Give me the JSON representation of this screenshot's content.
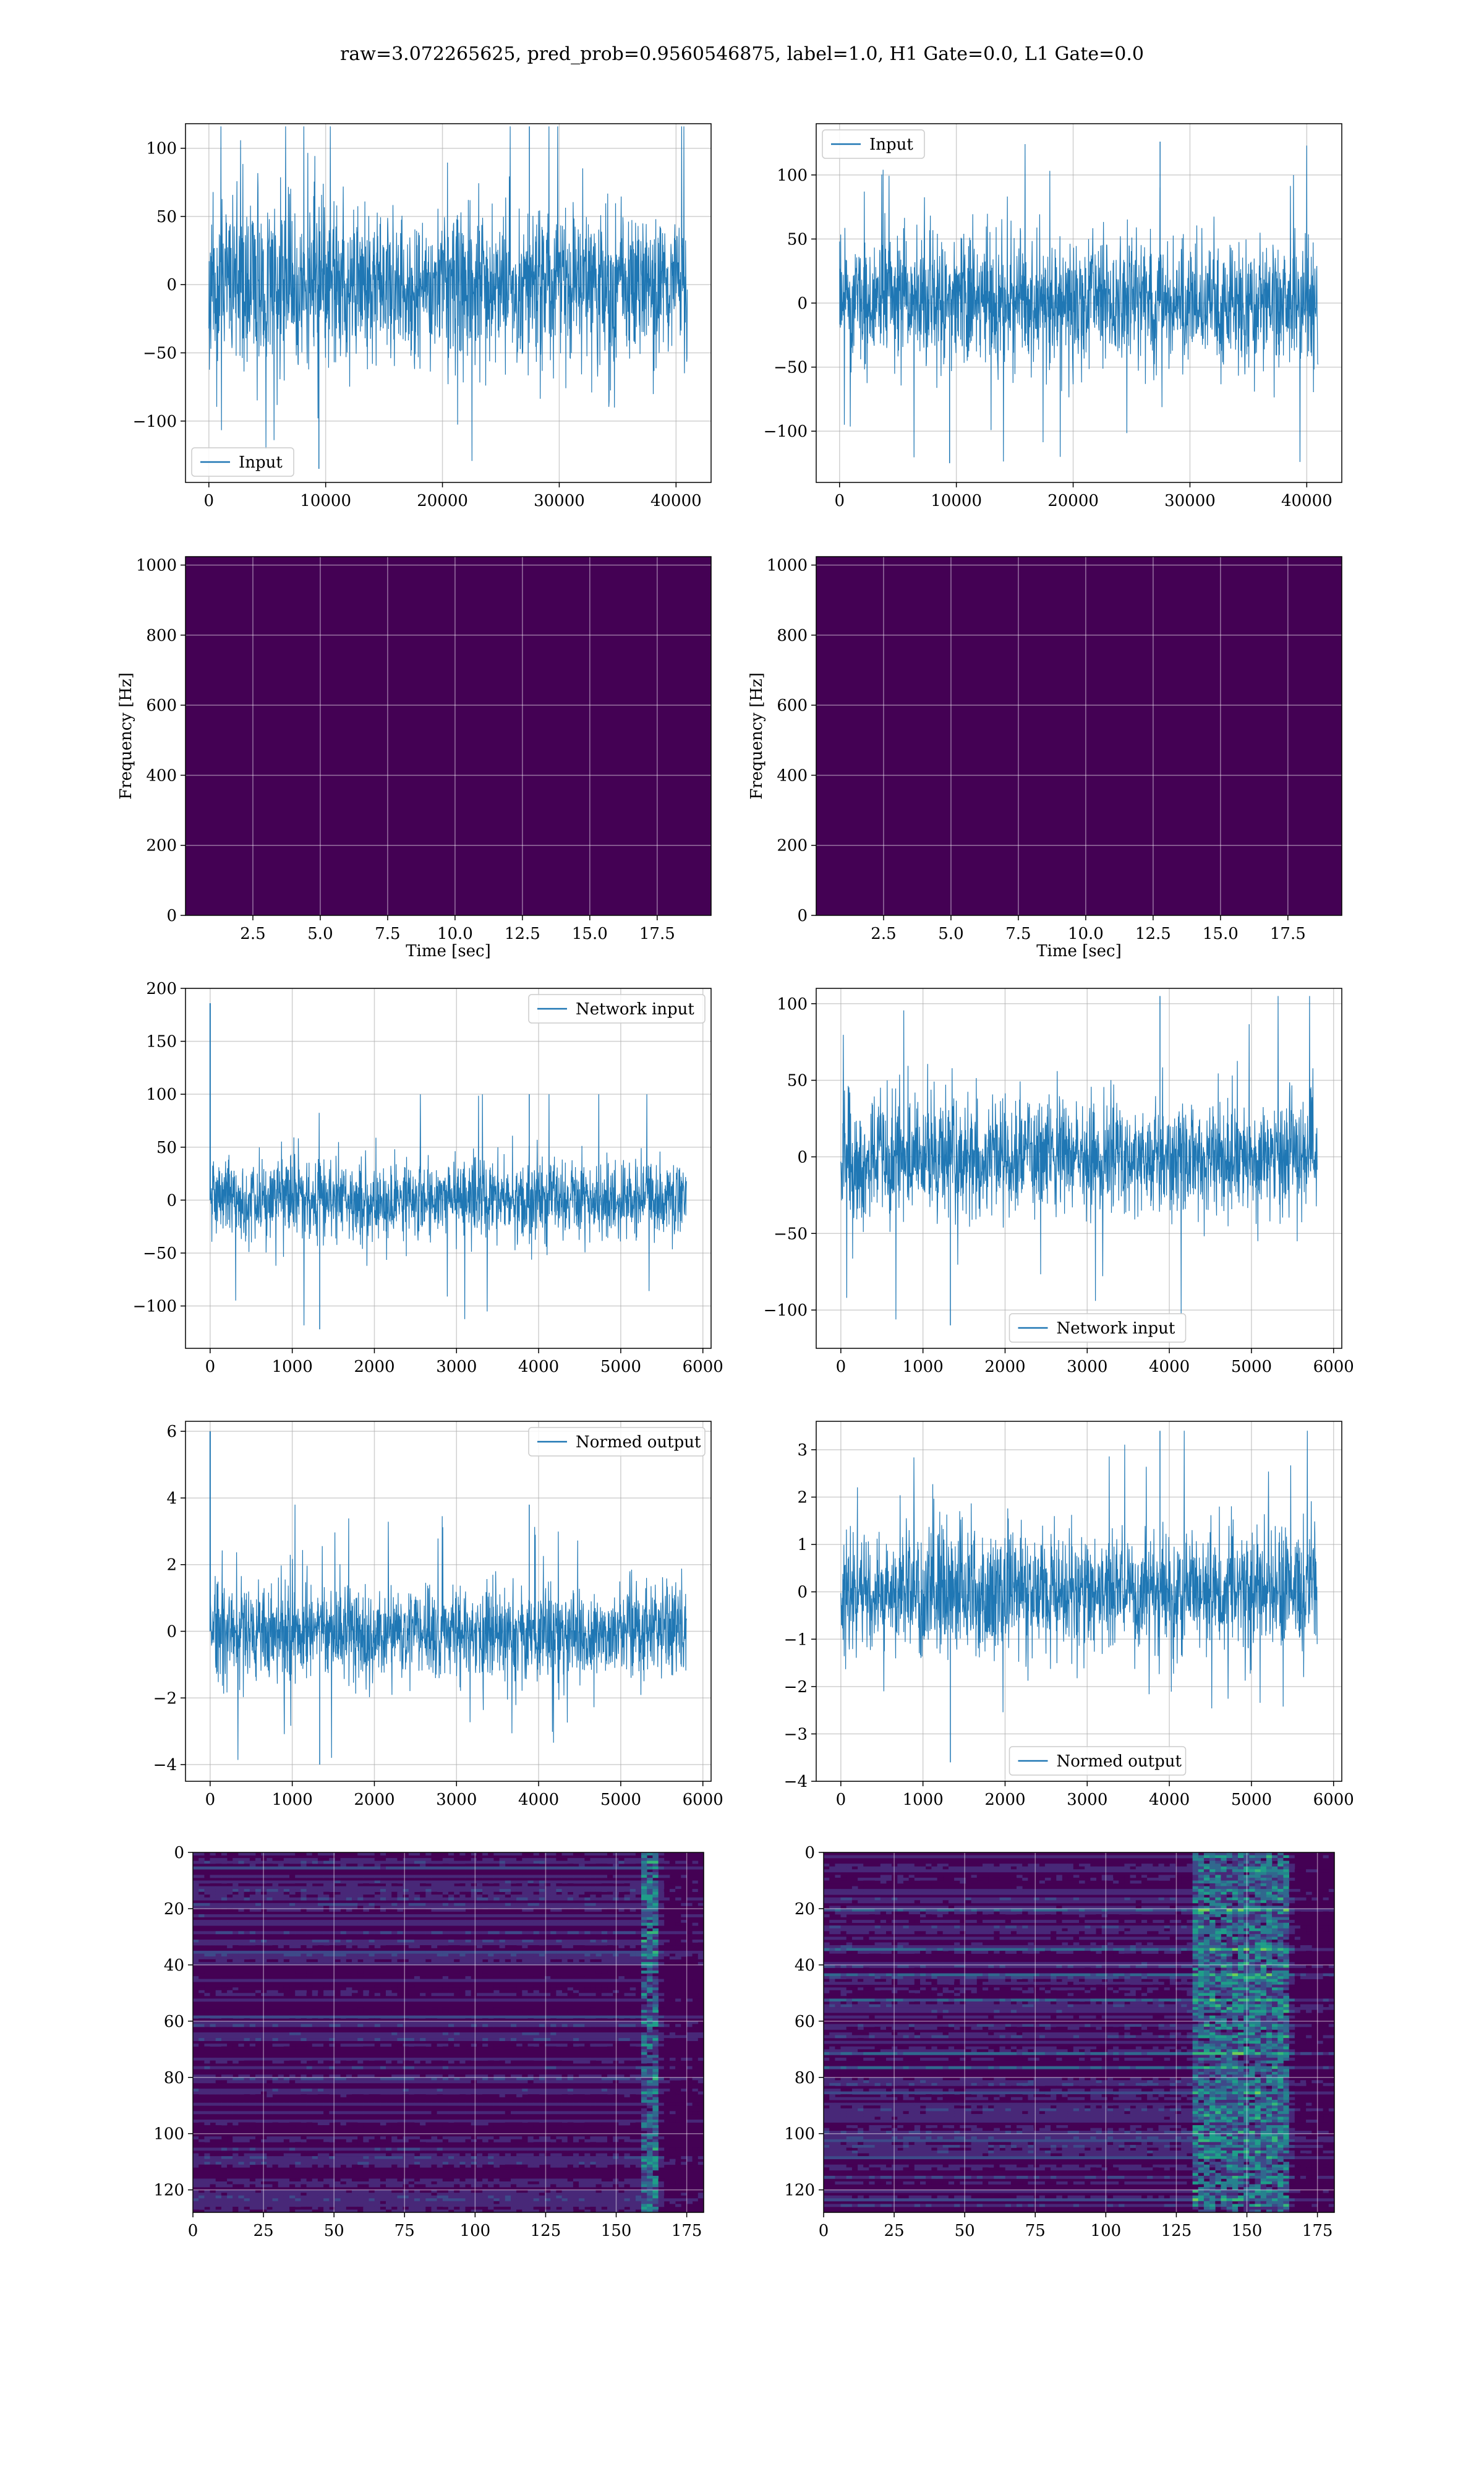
{
  "figure": {
    "title": "raw=3.072265625, pred_prob=0.9560546875, label=1.0, H1 Gate=0.0, L1 Gate=0.0"
  },
  "colors": {
    "line": "#1f77b4",
    "grid": "#b0b0b0",
    "viridis": [
      "#440154",
      "#482878",
      "#3e4989",
      "#31688e",
      "#26828e",
      "#1f9e89",
      "#35b779",
      "#6ece58",
      "#b5de2b",
      "#fde725"
    ]
  },
  "chart_data": [
    {
      "id": "p1",
      "type": "line",
      "title": "",
      "xlabel": "",
      "ylabel": "",
      "xlim": [
        -2000,
        43000
      ],
      "ylim": [
        -145,
        118
      ],
      "xticks": [
        0,
        10000,
        20000,
        30000,
        40000
      ],
      "xtick_labels": [
        "0",
        "10000",
        "20000",
        "30000",
        "40000"
      ],
      "yticks": [
        -100,
        -50,
        0,
        50,
        100
      ],
      "ytick_labels": [
        "−100",
        "−50",
        "0",
        "50",
        "100"
      ],
      "grid": true,
      "legend_position": "lower-left",
      "series": [
        {
          "name": "Input",
          "x_range": [
            0,
            40960
          ],
          "typical_band": [
            -70,
            70
          ],
          "min": -135,
          "max": 116,
          "start": 0
        }
      ]
    },
    {
      "id": "p2",
      "type": "line",
      "title": "",
      "xlabel": "",
      "ylabel": "",
      "xlim": [
        -2000,
        43000
      ],
      "ylim": [
        -140,
        140
      ],
      "xticks": [
        0,
        10000,
        20000,
        30000,
        40000
      ],
      "xtick_labels": [
        "0",
        "10000",
        "20000",
        "30000",
        "40000"
      ],
      "yticks": [
        -100,
        -50,
        0,
        50,
        100
      ],
      "ytick_labels": [
        "−100",
        "−50",
        "0",
        "50",
        "100"
      ],
      "grid": true,
      "legend_position": "upper-left",
      "series": [
        {
          "name": "Input",
          "x_range": [
            0,
            40960
          ],
          "typical_band": [
            -60,
            60
          ],
          "min": -125,
          "max": 126,
          "start": 0
        }
      ]
    },
    {
      "id": "s1",
      "type": "heatmap",
      "title": "",
      "xlabel": "Time [sec]",
      "ylabel": "Frequency [Hz]",
      "xlim": [
        0,
        19.5
      ],
      "ylim": [
        0,
        1024
      ],
      "xticks": [
        2.5,
        5.0,
        7.5,
        10.0,
        12.5,
        15.0,
        17.5
      ],
      "xtick_labels": [
        "2.5",
        "5.0",
        "7.5",
        "10.0",
        "12.5",
        "15.0",
        "17.5"
      ],
      "yticks": [
        0,
        200,
        400,
        600,
        800,
        1000
      ],
      "ytick_labels": [
        "0",
        "200",
        "400",
        "600",
        "800",
        "1000"
      ],
      "grid": true,
      "dark_band_hz": [
        490,
        510
      ]
    },
    {
      "id": "s2",
      "type": "heatmap",
      "title": "",
      "xlabel": "Time [sec]",
      "ylabel": "Frequency [Hz]",
      "xlim": [
        0,
        19.5
      ],
      "ylim": [
        0,
        1024
      ],
      "xticks": [
        2.5,
        5.0,
        7.5,
        10.0,
        12.5,
        15.0,
        17.5
      ],
      "xtick_labels": [
        "2.5",
        "5.0",
        "7.5",
        "10.0",
        "12.5",
        "15.0",
        "17.5"
      ],
      "yticks": [
        0,
        200,
        400,
        600,
        800,
        1000
      ],
      "ytick_labels": [
        "0",
        "200",
        "400",
        "600",
        "800",
        "1000"
      ],
      "grid": true,
      "dark_band_hz": [
        490,
        510
      ]
    },
    {
      "id": "p3",
      "type": "line",
      "title": "",
      "xlabel": "",
      "ylabel": "",
      "xlim": [
        -300,
        6100
      ],
      "ylim": [
        -140,
        200
      ],
      "xticks": [
        0,
        1000,
        2000,
        3000,
        4000,
        5000,
        6000
      ],
      "xtick_labels": [
        "0",
        "1000",
        "2000",
        "3000",
        "4000",
        "5000",
        "6000"
      ],
      "yticks": [
        -100,
        -50,
        0,
        50,
        100,
        150,
        200
      ],
      "ytick_labels": [
        "−100",
        "−50",
        "0",
        "50",
        "100",
        "150",
        "200"
      ],
      "grid": true,
      "legend_position": "upper-right",
      "series": [
        {
          "name": "Network input",
          "x_range": [
            0,
            5800
          ],
          "typical_band": [
            -45,
            45
          ],
          "min": -122,
          "max": 100,
          "start": 186
        }
      ]
    },
    {
      "id": "p4",
      "type": "line",
      "title": "",
      "xlabel": "",
      "ylabel": "",
      "xlim": [
        -300,
        6100
      ],
      "ylim": [
        -125,
        110
      ],
      "xticks": [
        0,
        1000,
        2000,
        3000,
        4000,
        5000,
        6000
      ],
      "xtick_labels": [
        "0",
        "1000",
        "2000",
        "3000",
        "4000",
        "5000",
        "6000"
      ],
      "yticks": [
        -100,
        -50,
        0,
        50,
        100
      ],
      "ytick_labels": [
        "−100",
        "−50",
        "0",
        "50",
        "100"
      ],
      "grid": true,
      "legend_position": "lower-center",
      "series": [
        {
          "name": "Network input",
          "x_range": [
            0,
            5800
          ],
          "typical_band": [
            -45,
            45
          ],
          "min": -110,
          "max": 105,
          "start": 0
        }
      ]
    },
    {
      "id": "p5",
      "type": "line",
      "title": "",
      "xlabel": "",
      "ylabel": "",
      "xlim": [
        -300,
        6100
      ],
      "ylim": [
        -4.5,
        6.3
      ],
      "xticks": [
        0,
        1000,
        2000,
        3000,
        4000,
        5000,
        6000
      ],
      "xtick_labels": [
        "0",
        "1000",
        "2000",
        "3000",
        "4000",
        "5000",
        "6000"
      ],
      "yticks": [
        -4,
        -2,
        0,
        2,
        4,
        6
      ],
      "ytick_labels": [
        "−4",
        "−2",
        "0",
        "2",
        "4",
        "6"
      ],
      "grid": true,
      "legend_position": "upper-right",
      "series": [
        {
          "name": "Normed output",
          "x_range": [
            0,
            5800
          ],
          "typical_band": [
            -1.8,
            1.8
          ],
          "min": -4.0,
          "max": 3.8,
          "start": 6.0
        }
      ]
    },
    {
      "id": "p6",
      "type": "line",
      "title": "",
      "xlabel": "",
      "ylabel": "",
      "xlim": [
        -300,
        6100
      ],
      "ylim": [
        -4.0,
        3.6
      ],
      "xticks": [
        0,
        1000,
        2000,
        3000,
        4000,
        5000,
        6000
      ],
      "xtick_labels": [
        "0",
        "1000",
        "2000",
        "3000",
        "4000",
        "5000",
        "6000"
      ],
      "yticks": [
        -4,
        -3,
        -2,
        -1,
        0,
        1,
        2,
        3
      ],
      "ytick_labels": [
        "−4",
        "−3",
        "−2",
        "−1",
        "0",
        "1",
        "2",
        "3"
      ],
      "grid": true,
      "legend_position": "lower-center",
      "series": [
        {
          "name": "Normed output",
          "x_range": [
            0,
            5800
          ],
          "typical_band": [
            -1.6,
            1.6
          ],
          "min": -3.6,
          "max": 3.4,
          "start": 0
        }
      ]
    },
    {
      "id": "f1",
      "type": "heatmap",
      "title": "",
      "xlabel": "",
      "ylabel": "",
      "xlim": [
        0,
        181
      ],
      "ylim": [
        128,
        0
      ],
      "xticks": [
        0,
        25,
        50,
        75,
        100,
        125,
        150,
        175
      ],
      "xtick_labels": [
        "0",
        "25",
        "50",
        "75",
        "100",
        "125",
        "150",
        "175"
      ],
      "yticks": [
        0,
        20,
        40,
        60,
        80,
        100,
        120
      ],
      "ytick_labels": [
        "0",
        "20",
        "40",
        "60",
        "80",
        "100",
        "120"
      ],
      "grid": true,
      "bright_columns": [
        158,
        165
      ]
    },
    {
      "id": "f2",
      "type": "heatmap",
      "title": "",
      "xlabel": "",
      "ylabel": "",
      "xlim": [
        0,
        181
      ],
      "ylim": [
        128,
        0
      ],
      "xticks": [
        0,
        25,
        50,
        75,
        100,
        125,
        150,
        175
      ],
      "xtick_labels": [
        "0",
        "25",
        "50",
        "75",
        "100",
        "125",
        "150",
        "175"
      ],
      "yticks": [
        0,
        20,
        40,
        60,
        80,
        100,
        120
      ],
      "ytick_labels": [
        "0",
        "20",
        "40",
        "60",
        "80",
        "100",
        "120"
      ],
      "grid": true,
      "bright_columns": [
        130,
        165
      ]
    }
  ]
}
